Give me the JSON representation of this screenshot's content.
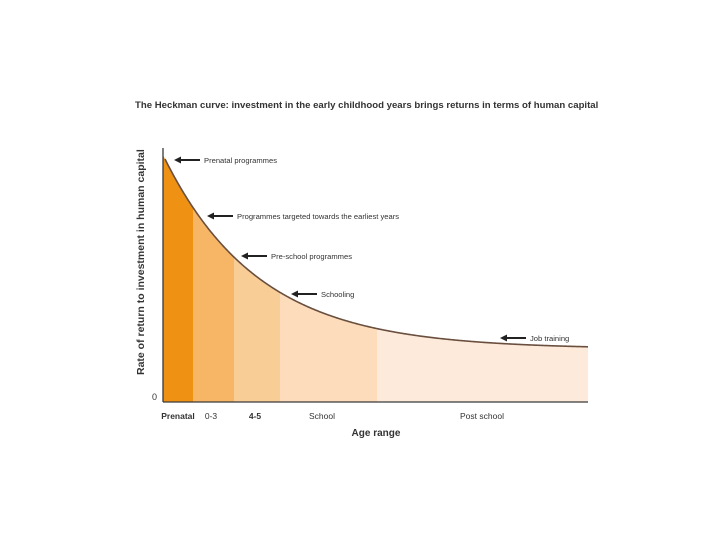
{
  "chart_data": {
    "type": "area",
    "title": "The Heckman curve: investment in the early childhood years brings returns in terms of human capital",
    "xlabel": "Age range",
    "ylabel": "Rate of return to investment in human capital",
    "y_origin_label": "0",
    "grid": false,
    "segments": [
      {
        "label": "Prenatal",
        "color": "#ef9214",
        "bold": true
      },
      {
        "label": "0-3",
        "color": "#f6b665",
        "bold": false
      },
      {
        "label": "4-5",
        "color": "#f9cd96",
        "bold": true
      },
      {
        "label": "School",
        "color": "#fcdcba",
        "bold": false
      },
      {
        "label": "Post school",
        "color": "#fdeada",
        "bold": false
      }
    ],
    "annotations": [
      {
        "text": "Prenatal programmes",
        "segment": 0
      },
      {
        "text": "Programmes targeted towards the earliest years",
        "segment": 1
      },
      {
        "text": "Pre-school programmes",
        "segment": 2
      },
      {
        "text": "Schooling",
        "segment": 3
      },
      {
        "text": "Job training",
        "segment": 4
      }
    ],
    "colors": {
      "curve": "#6a4f3f",
      "axis": "#3a3a3a",
      "text": "#333333"
    }
  }
}
